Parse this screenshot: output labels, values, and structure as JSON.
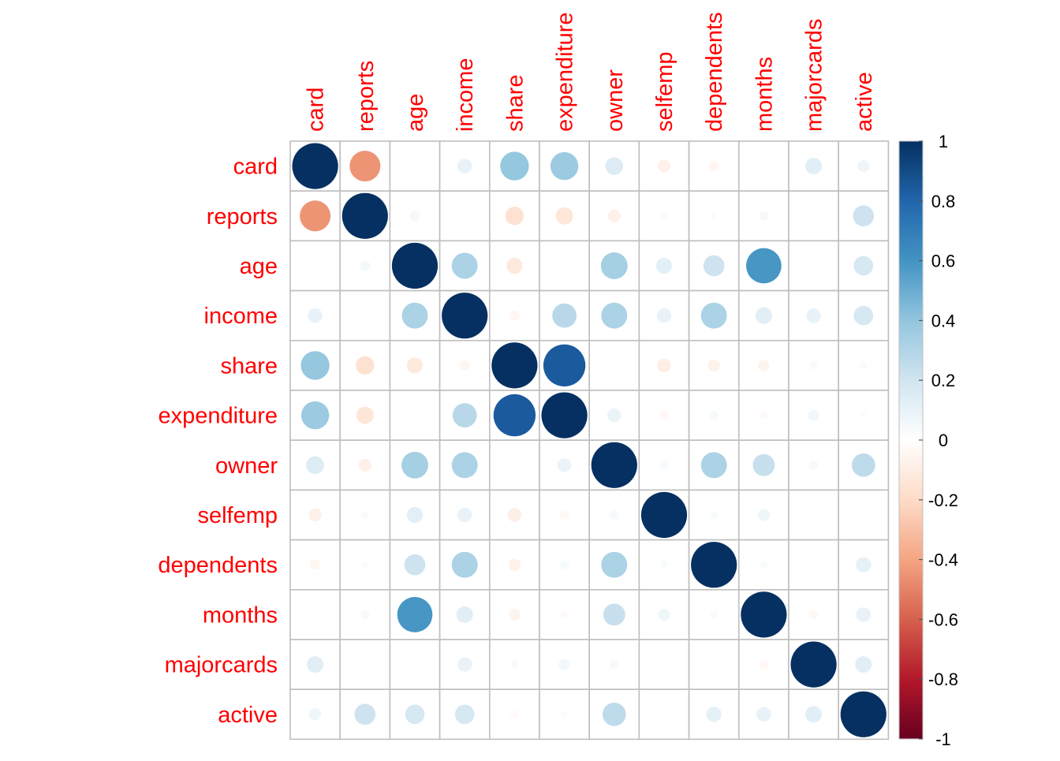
{
  "chart_data": {
    "type": "heatmap",
    "style": "corrplot-circle",
    "variables": [
      "card",
      "reports",
      "age",
      "income",
      "share",
      "expenditure",
      "owner",
      "selfemp",
      "dependents",
      "months",
      "majorcards",
      "active"
    ],
    "values": [
      [
        1.0,
        -0.45,
        0.01,
        0.1,
        0.39,
        0.37,
        0.15,
        -0.08,
        -0.05,
        -0.01,
        0.13,
        0.07
      ],
      [
        -0.45,
        1.0,
        0.05,
        0.01,
        -0.16,
        -0.14,
        -0.08,
        0.03,
        0.02,
        0.04,
        0.0,
        0.21
      ],
      [
        0.01,
        0.05,
        1.0,
        0.32,
        -0.12,
        0.01,
        0.34,
        0.12,
        0.21,
        0.59,
        0.01,
        0.18
      ],
      [
        0.1,
        0.01,
        0.32,
        1.0,
        -0.05,
        0.28,
        0.32,
        0.1,
        0.32,
        0.13,
        0.1,
        0.18
      ],
      [
        0.39,
        -0.16,
        -0.12,
        -0.05,
        1.0,
        0.84,
        0.01,
        -0.09,
        -0.07,
        -0.06,
        0.03,
        -0.03
      ],
      [
        0.37,
        -0.14,
        0.01,
        0.28,
        0.84,
        1.0,
        0.09,
        -0.04,
        0.04,
        -0.03,
        0.06,
        0.02
      ],
      [
        0.15,
        -0.08,
        0.34,
        0.32,
        0.01,
        0.09,
        1.0,
        0.04,
        0.32,
        0.23,
        0.04,
        0.26
      ],
      [
        -0.08,
        0.03,
        0.12,
        0.1,
        -0.09,
        -0.04,
        0.04,
        1.0,
        0.03,
        0.07,
        0.0,
        0.01
      ],
      [
        -0.05,
        0.02,
        0.21,
        0.32,
        -0.07,
        0.04,
        0.32,
        0.03,
        1.0,
        0.03,
        0.0,
        0.11
      ],
      [
        -0.01,
        0.04,
        0.59,
        0.13,
        -0.06,
        -0.03,
        0.23,
        0.07,
        0.03,
        1.0,
        -0.04,
        0.1
      ],
      [
        0.13,
        0.0,
        0.01,
        0.1,
        0.03,
        0.06,
        0.04,
        0.0,
        0.0,
        -0.04,
        1.0,
        0.13
      ],
      [
        0.07,
        0.21,
        0.18,
        0.18,
        -0.03,
        0.02,
        0.26,
        0.01,
        0.11,
        0.1,
        0.13,
        1.0
      ]
    ],
    "color_scale": {
      "range": [
        -1,
        1
      ],
      "stops": [
        "#67001F",
        "#B2182B",
        "#D6604D",
        "#F4A582",
        "#FDDBC7",
        "#FFFFFF",
        "#D1E5F0",
        "#92C5DE",
        "#4393C3",
        "#2166AC",
        "#053061"
      ]
    },
    "colorbar_ticks": [
      "1",
      "0.8",
      "0.6",
      "0.4",
      "0.2",
      "0",
      "-0.2",
      "-0.4",
      "-0.6",
      "-0.8",
      "-1"
    ],
    "label_color": "#FF0000",
    "grid_color": "#BEBEBE"
  }
}
